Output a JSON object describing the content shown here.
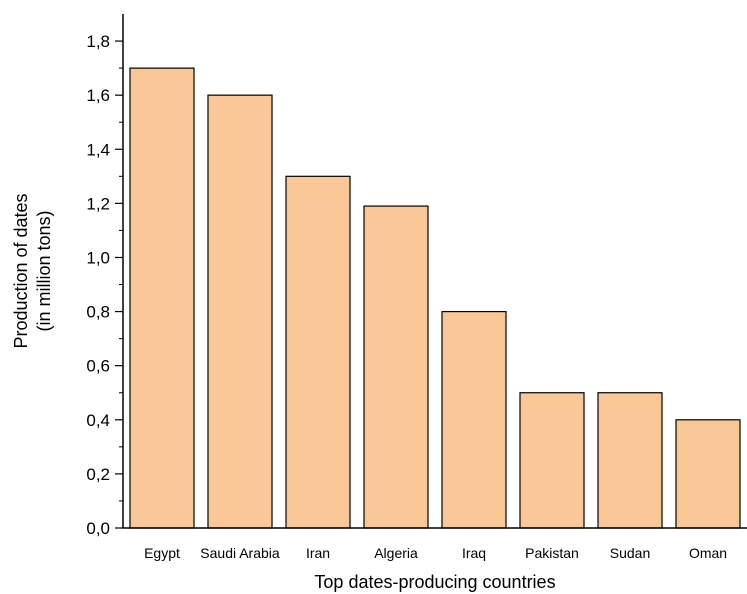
{
  "chart_data": {
    "type": "bar",
    "categories": [
      "Egypt",
      "Saudi Arabia",
      "Iran",
      "Algeria",
      "Iraq",
      "Pakistan",
      "Sudan",
      "Oman"
    ],
    "values": [
      1.7,
      1.6,
      1.3,
      1.19,
      0.8,
      0.5,
      0.5,
      0.4
    ],
    "xlabel": "Top dates-producing countries",
    "ylabel_line1": "Production of dates",
    "ylabel_line2": "(in million tons)",
    "ylim": [
      0,
      1.9
    ],
    "yticks": [
      0.0,
      0.2,
      0.4,
      0.6,
      0.8,
      1.0,
      1.2,
      1.4,
      1.6,
      1.8
    ],
    "ytick_labels": [
      "0,0",
      "0,2",
      "0,4",
      "0,6",
      "0,8",
      "1,0",
      "1,2",
      "1,4",
      "1,6",
      "1,8"
    ],
    "grid": false,
    "bar_color": "#fac796",
    "bar_edge_color": "#000000"
  }
}
